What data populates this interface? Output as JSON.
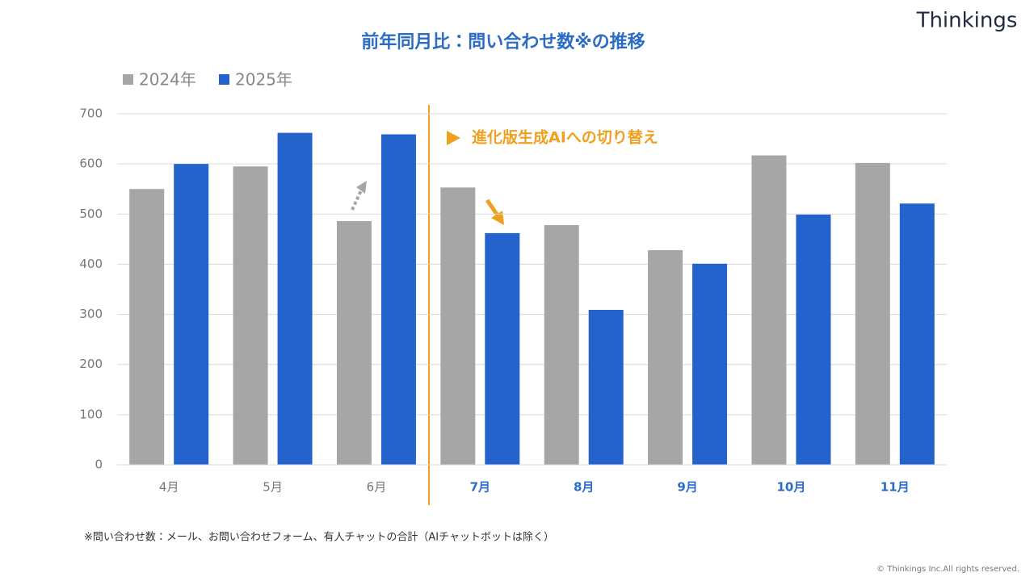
{
  "brand": "Thinkings",
  "chart_data": {
    "type": "bar",
    "title": "前年同月比：問い合わせ数※の推移",
    "annotation": "進化版生成AIへの切り替え",
    "categories": [
      "4月",
      "5月",
      "6月",
      "7月",
      "8月",
      "9月",
      "10月",
      "11月"
    ],
    "series": [
      {
        "name": "2024年",
        "color": "#a6a6a6",
        "values": [
          550,
          595,
          486,
          553,
          478,
          428,
          617,
          602
        ]
      },
      {
        "name": "2025年",
        "color": "#2563cc",
        "values": [
          600,
          662,
          659,
          462,
          309,
          401,
          499,
          521
        ]
      }
    ],
    "ylim": [
      0,
      700
    ],
    "yticks": [
      0,
      100,
      200,
      300,
      400,
      500,
      600,
      700
    ],
    "grid": true
  },
  "footnote": "※問い合わせ数：メール、お問い合わせフォーム、有人チャットの合計（AIチャットボットは除く）",
  "copyright": "© Thinkings Inc.All rights reserved."
}
